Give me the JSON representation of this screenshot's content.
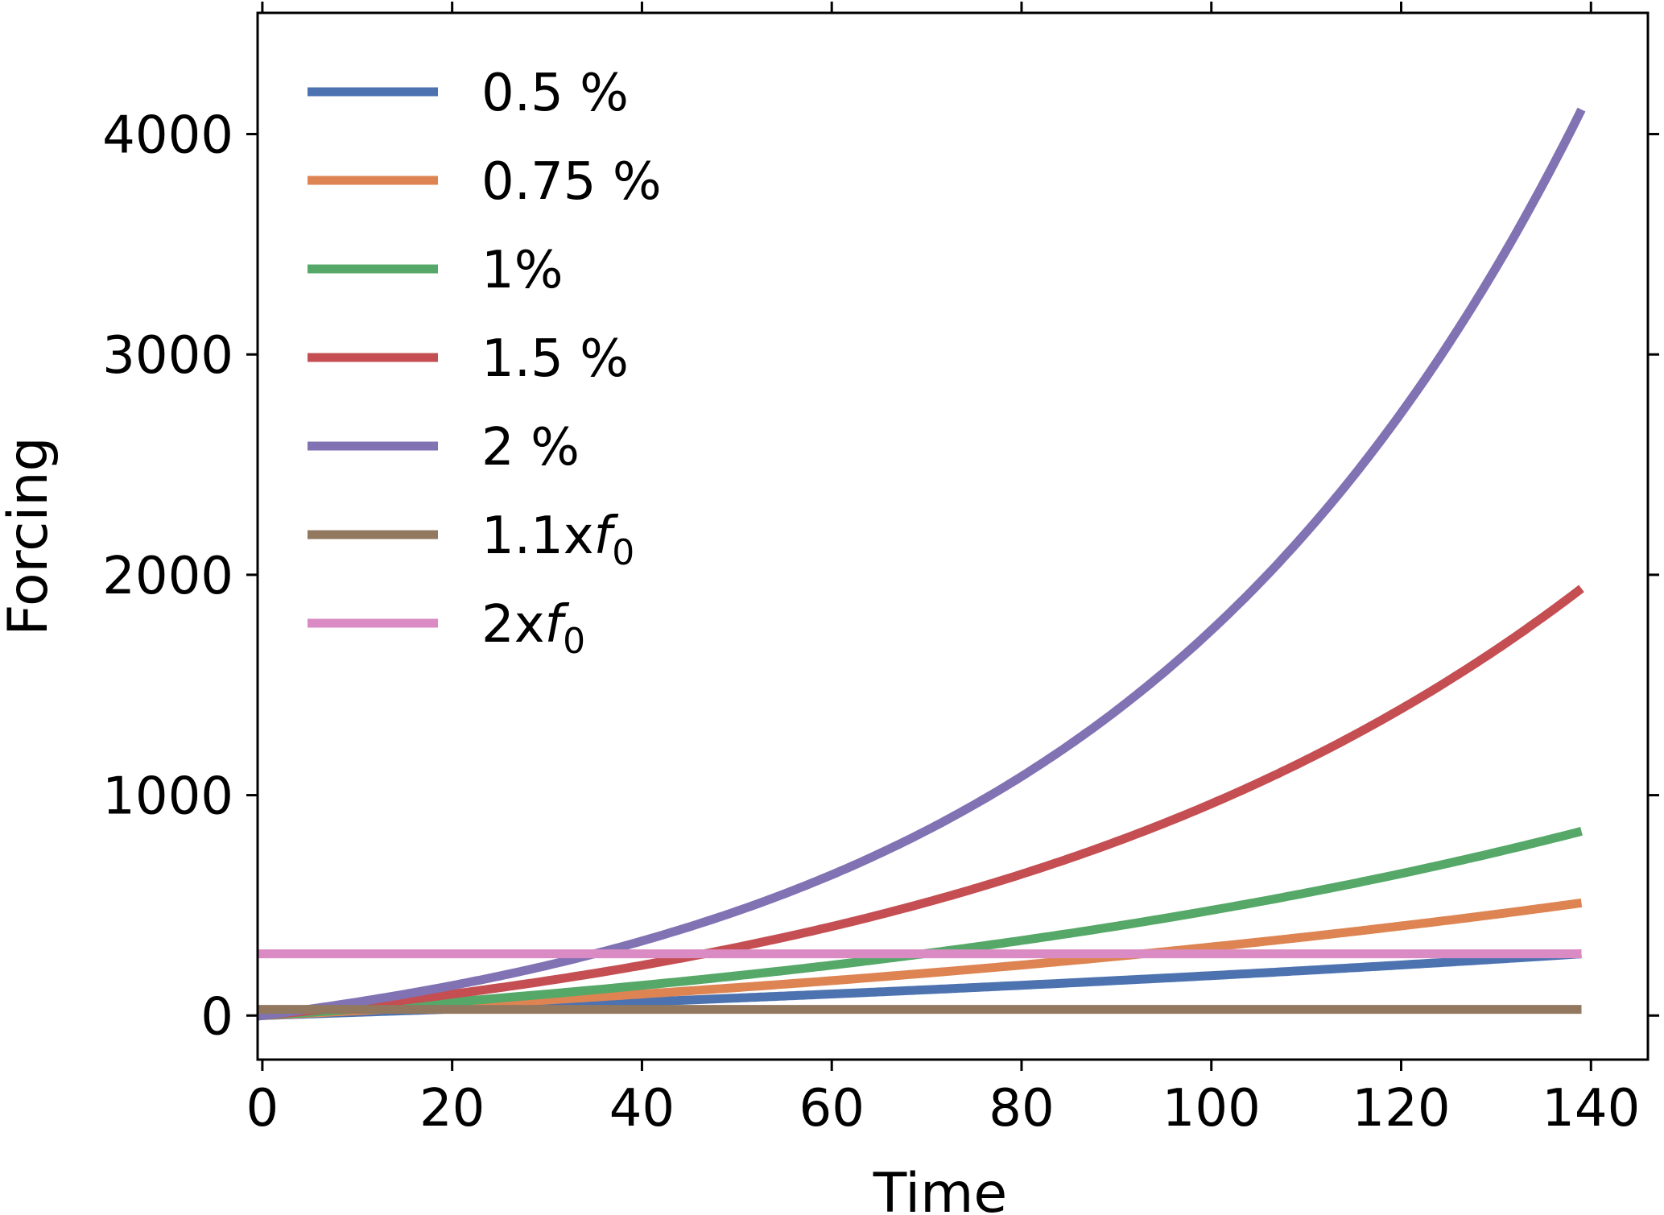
{
  "chart_data": {
    "type": "line",
    "xlabel": "Time",
    "ylabel": "Forcing",
    "xlim": [
      -0.5,
      146
    ],
    "ylim": [
      -200,
      4550
    ],
    "xticks": [
      0,
      20,
      40,
      60,
      80,
      100,
      120,
      140
    ],
    "yticks": [
      0,
      1000,
      2000,
      3000,
      4000
    ],
    "legend_position": "top-left",
    "grid": false,
    "f0": 280,
    "series": [
      {
        "name": "0.5 %",
        "color": "#4c72b0",
        "kind": "growth",
        "start": -0.5,
        "end": 139,
        "y0": 0,
        "rate": 0.005
      },
      {
        "name": "0.75 %",
        "color": "#dd8452",
        "kind": "growth",
        "start": -0.5,
        "end": 139,
        "y0": 0,
        "rate": 0.0075
      },
      {
        "name": "1%",
        "color": "#55a868",
        "kind": "growth",
        "start": -0.5,
        "end": 139,
        "y0": 0,
        "rate": 0.01
      },
      {
        "name": "1.5 %",
        "color": "#c44e52",
        "kind": "growth",
        "start": -0.5,
        "end": 139,
        "y0": 0,
        "rate": 0.015
      },
      {
        "name": "2 %",
        "color": "#8172b3",
        "kind": "growth",
        "start": -0.5,
        "end": 139,
        "y0": 0,
        "rate": 0.02
      },
      {
        "name": "1.1x",
        "name_sub": "0",
        "color": "#937860",
        "kind": "constant",
        "start": -0.5,
        "end": 139,
        "value": 28
      },
      {
        "name": "2x",
        "name_sub": "0",
        "color": "#da8bc3",
        "kind": "constant",
        "start": -0.5,
        "end": 139,
        "value": 280
      }
    ]
  }
}
